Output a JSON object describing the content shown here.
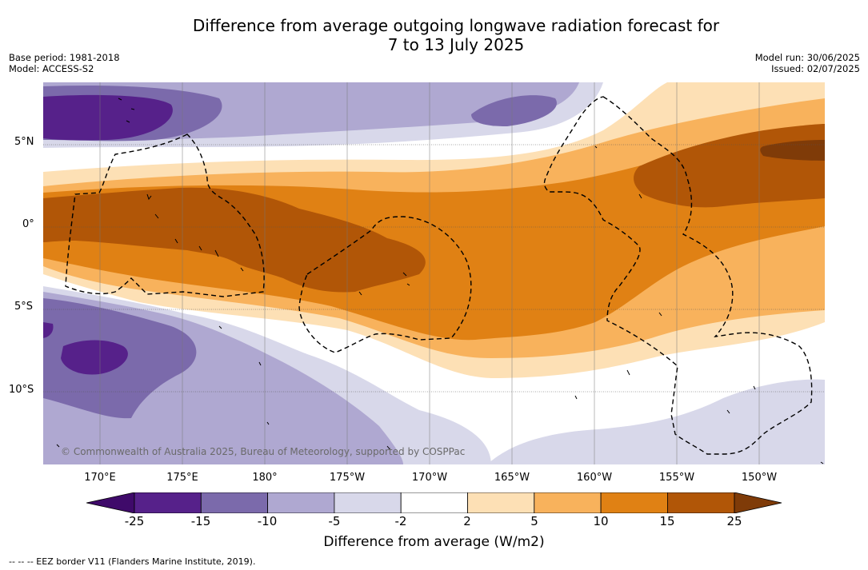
{
  "title": {
    "line1": "Difference from average outgoing longwave radiation forecast for",
    "line2": "7 to 13 July 2025"
  },
  "meta_left": {
    "base_period": "Base period: 1981-2018",
    "model": "Model: ACCESS-S2"
  },
  "meta_right": {
    "model_run": "Model run: 30/06/2025",
    "issued": "Issued: 02/07/2025"
  },
  "map": {
    "copyright": "© Commonwealth of Australia 2025, Bureau of Meteorology, supported by COSPPac",
    "lat_labels": [
      "5°N",
      "0°",
      "5°S",
      "10°S"
    ],
    "lon_labels": [
      "170°E",
      "175°E",
      "180°",
      "175°W",
      "170°W",
      "165°W",
      "160°W",
      "155°W",
      "150°W"
    ]
  },
  "colorbar": {
    "ticks": [
      "-25",
      "-15",
      "-10",
      "-5",
      "-2",
      "2",
      "5",
      "10",
      "15",
      "25"
    ],
    "colors": [
      "#3f0a6a",
      "#56218a",
      "#7b6aab",
      "#afa8d1",
      "#d8d8ea",
      "#ffffff",
      "#fde0b5",
      "#f8b25c",
      "#e08114",
      "#b15607",
      "#7f3b08"
    ],
    "label": "Difference from average (W/m2)"
  },
  "legend_note": "--  --  -- EEZ border V11 (Flanders Marine Institute, 2019)."
}
